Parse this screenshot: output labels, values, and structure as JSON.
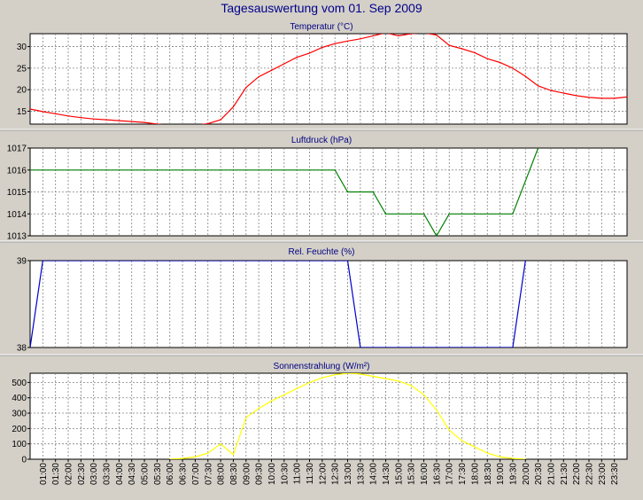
{
  "page": {
    "title": "Tagesauswertung vom 01. Sep 2009",
    "colors": {
      "background": "#d4d0c8",
      "plot": "#ffffff",
      "grid": "#808080",
      "title": "#00008b"
    }
  },
  "chart_data": [
    {
      "type": "line",
      "title": "Temperatur (°C)",
      "x": [
        "00:30",
        "01:00",
        "01:30",
        "02:00",
        "02:30",
        "03:00",
        "03:30",
        "04:00",
        "04:30",
        "05:00",
        "05:30",
        "06:00",
        "06:30",
        "07:00",
        "07:30",
        "08:00",
        "08:30",
        "09:00",
        "09:30",
        "10:00",
        "10:30",
        "11:00",
        "11:30",
        "12:00",
        "12:30",
        "13:00",
        "13:30",
        "14:00",
        "14:30",
        "15:00",
        "15:30",
        "16:00",
        "16:30",
        "17:00",
        "17:30",
        "18:00",
        "18:30",
        "19:00",
        "19:30",
        "20:00",
        "20:30",
        "21:00",
        "21:30",
        "22:00",
        "22:30",
        "23:00",
        "23:30",
        "24:00"
      ],
      "series": [
        {
          "color": "#ff0000",
          "values": [
            15.5,
            14.9,
            14.4,
            13.9,
            13.5,
            13.2,
            13.0,
            12.8,
            12.6,
            12.4,
            12.0,
            11.7,
            11.6,
            11.7,
            12.1,
            13.0,
            16.0,
            20.5,
            23.0,
            24.5,
            26.0,
            27.5,
            28.5,
            29.8,
            30.7,
            31.3,
            31.8,
            32.5,
            33.2,
            32.5,
            33.0,
            33.2,
            32.7,
            30.3,
            29.5,
            28.6,
            27.2,
            26.3,
            25.0,
            23.1,
            20.9,
            19.8,
            19.2,
            18.6,
            18.2,
            18.0,
            18.0,
            18.3
          ]
        }
      ],
      "ylim": [
        12,
        33
      ],
      "yticks": [
        15,
        20,
        25,
        30
      ],
      "grid": true
    },
    {
      "type": "line",
      "title": "Luftdruck (hPa)",
      "x": [
        "00:30",
        "12:30",
        "13:00",
        "14:00",
        "14:30",
        "16:00",
        "16:30",
        "17:00",
        "18:00",
        "19:30",
        "20:30"
      ],
      "series": [
        {
          "color": "#008000",
          "values": [
            1016,
            1016,
            1015,
            1015,
            1014,
            1014,
            1013,
            1014,
            1014,
            1014,
            1017
          ]
        }
      ],
      "ylim": [
        1013,
        1017
      ],
      "yticks": [
        1013,
        1014,
        1015,
        1016,
        1017
      ],
      "grid": true
    },
    {
      "type": "line",
      "title": "Rel. Feuchte (%)",
      "x": [
        "00:30",
        "01:00",
        "13:00",
        "13:30",
        "19:30",
        "20:00"
      ],
      "series": [
        {
          "color": "#0000cc",
          "values": [
            38,
            39,
            39,
            38,
            38,
            39
          ]
        }
      ],
      "ylim": [
        38,
        39
      ],
      "yticks": [
        38,
        39
      ],
      "grid": true
    },
    {
      "type": "line",
      "title": "Sonnenstrahlung (W/m²)",
      "x": [
        "06:00",
        "06:30",
        "07:00",
        "07:30",
        "08:00",
        "08:30",
        "09:00",
        "09:30",
        "10:00",
        "10:30",
        "11:00",
        "11:30",
        "12:00",
        "12:30",
        "13:00",
        "13:30",
        "14:00",
        "14:30",
        "15:00",
        "15:30",
        "16:00",
        "16:30",
        "17:00",
        "17:30",
        "18:00",
        "18:30",
        "19:00",
        "19:30",
        "20:00"
      ],
      "series": [
        {
          "color": "#ffff00",
          "values": [
            0,
            5,
            15,
            40,
            100,
            30,
            270,
            330,
            380,
            420,
            460,
            500,
            530,
            550,
            560,
            555,
            540,
            525,
            510,
            480,
            420,
            320,
            190,
            120,
            80,
            40,
            15,
            5,
            0
          ]
        }
      ],
      "ylim": [
        0,
        560
      ],
      "yticks": [
        0,
        100,
        200,
        300,
        400,
        500
      ],
      "grid": true
    }
  ],
  "x_axis": {
    "tick_labels": [
      "01:00",
      "01:30",
      "02:00",
      "02:30",
      "03:00",
      "03:30",
      "04:00",
      "04:30",
      "05:00",
      "05:30",
      "06:00",
      "06:30",
      "07:00",
      "07:30",
      "08:00",
      "08:30",
      "09:00",
      "09:30",
      "10:00",
      "10:30",
      "11:00",
      "11:30",
      "12:00",
      "12:30",
      "13:00",
      "13:30",
      "14:00",
      "14:30",
      "15:00",
      "15:30",
      "16:00",
      "16:30",
      "17:00",
      "17:30",
      "18:00",
      "18:30",
      "19:00",
      "19:30",
      "20:00",
      "20:30",
      "21:00",
      "21:30",
      "22:00",
      "22:30",
      "23:00",
      "23:30"
    ]
  }
}
